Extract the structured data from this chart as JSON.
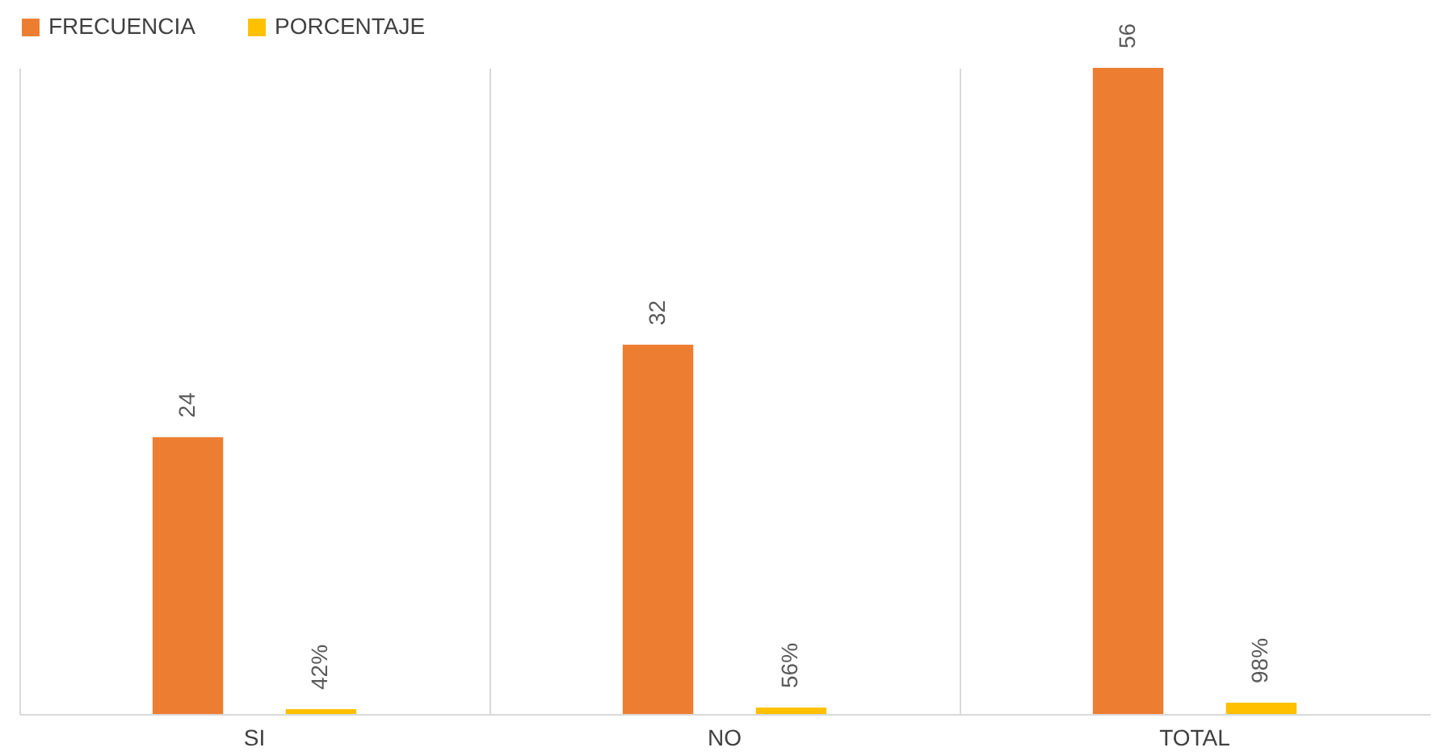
{
  "chart_data": {
    "type": "bar",
    "categories": [
      "SI",
      "NO",
      "TOTAL"
    ],
    "series": [
      {
        "name": "FRECUENCIA",
        "color": "#ed7d31",
        "values": [
          24,
          32,
          56
        ],
        "value_labels": [
          "24",
          "32",
          "56"
        ]
      },
      {
        "name": "PORCENTAJE",
        "color": "#ffc000",
        "values": [
          0.42,
          0.56,
          0.98
        ],
        "value_labels": [
          "42%",
          "56%",
          "98%"
        ]
      }
    ],
    "grid": "x",
    "legend": "top"
  }
}
